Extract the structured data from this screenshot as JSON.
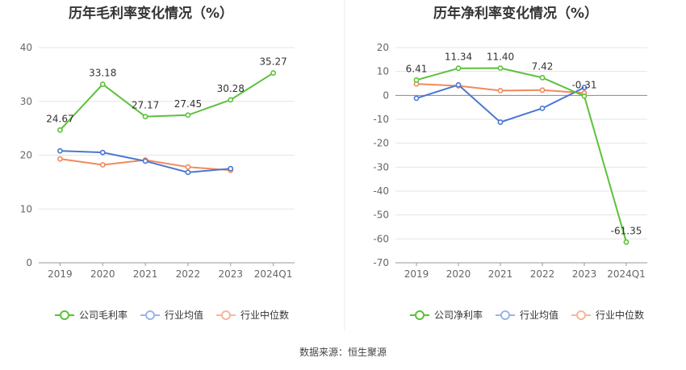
{
  "chart_data": [
    {
      "type": "line",
      "title": "历年毛利率变化情况（%）",
      "categories": [
        "2019",
        "2020",
        "2021",
        "2022",
        "2023",
        "2024Q1"
      ],
      "ylim": [
        0,
        40
      ],
      "yticks": [
        0,
        10,
        20,
        30,
        40
      ],
      "grid": true,
      "legend_position": "bottom",
      "series": [
        {
          "name": "公司毛利率",
          "color": "#5cc13a",
          "labels": true,
          "values": [
            24.67,
            33.18,
            27.17,
            27.45,
            30.28,
            35.27
          ]
        },
        {
          "name": "行业均值",
          "color": "#4a78d1",
          "labels": false,
          "values": [
            20.8,
            20.5,
            18.9,
            16.8,
            17.5,
            null
          ]
        },
        {
          "name": "行业中位数",
          "color": "#f08a5d",
          "labels": false,
          "values": [
            19.3,
            18.2,
            19.1,
            17.8,
            17.2,
            null
          ]
        }
      ]
    },
    {
      "type": "line",
      "title": "历年净利率变化情况（%）",
      "categories": [
        "2019",
        "2020",
        "2021",
        "2022",
        "2023",
        "2024Q1"
      ],
      "ylim": [
        -70,
        20
      ],
      "yticks": [
        -70,
        -60,
        -50,
        -40,
        -30,
        -20,
        -10,
        0,
        10,
        20
      ],
      "grid": true,
      "legend_position": "bottom",
      "series": [
        {
          "name": "公司净利率",
          "color": "#5cc13a",
          "labels": true,
          "values": [
            6.41,
            11.34,
            11.4,
            7.42,
            -0.31,
            -61.35
          ]
        },
        {
          "name": "行业均值",
          "color": "#4a78d1",
          "labels": false,
          "values": [
            -1.2,
            4.4,
            -11.2,
            -5.4,
            3.3,
            null
          ]
        },
        {
          "name": "行业中位数",
          "color": "#f08a5d",
          "labels": false,
          "values": [
            4.8,
            4.0,
            2.0,
            2.2,
            1.0,
            null
          ]
        }
      ]
    }
  ],
  "source_text": "数据来源：恒生聚源"
}
